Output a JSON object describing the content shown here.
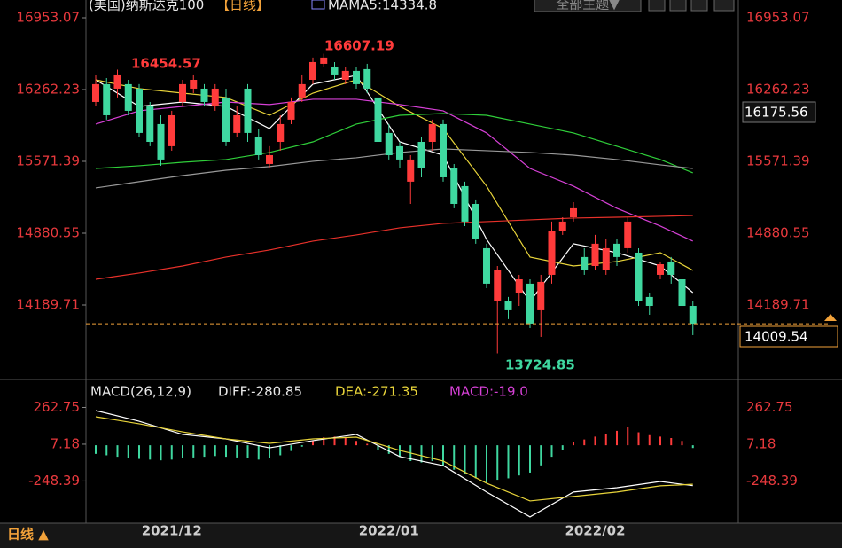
{
  "header": {
    "symbol": "(美国)纳斯达克100",
    "period": "【日线】",
    "indicator": "MAMA5:14334.8",
    "theme_button": "全部主题▼"
  },
  "chart_data": [
    {
      "type": "candlestick",
      "open": [
        16143,
        16314,
        16271,
        16314,
        16271,
        16100,
        15930,
        15717,
        16143,
        16271,
        16271,
        16100,
        16186,
        15845,
        16271,
        15802,
        15546,
        15759,
        15973,
        16186,
        16356,
        16510,
        16484,
        16356,
        16442,
        16459,
        16186,
        15845,
        15717,
        15376,
        15759,
        15759,
        15930,
        15503,
        15333,
        15162,
        14736,
        14224,
        14224,
        14309,
        14395,
        14139,
        14480,
        14906,
        15034,
        14651,
        14565,
        14523,
        14779,
        14736,
        14693,
        14267,
        14480,
        14608,
        14437,
        14181
      ],
      "high": [
        16399,
        16373,
        16454.57,
        16356,
        16314,
        16143,
        16015,
        16058,
        16356,
        16399,
        16314,
        16314,
        16271,
        16100,
        16314,
        15887,
        15717,
        16015,
        16186,
        16399,
        16570,
        16607.19,
        16527,
        16484,
        16484,
        16510,
        16228,
        15930,
        15759,
        15631,
        15802,
        15973,
        15973,
        15546,
        15376,
        15205,
        14779,
        14565,
        14267,
        14480,
        14437,
        14480,
        14992,
        15034,
        15179,
        14736,
        14864,
        14821,
        14821,
        15034,
        14736,
        14309,
        14608,
        14651,
        14480,
        14224
      ],
      "low": [
        16100,
        15973,
        16186,
        16015,
        15802,
        15717,
        15529,
        15674,
        16100,
        16228,
        16100,
        16058,
        15717,
        15802,
        15759,
        15589,
        15503,
        15674,
        15930,
        16143,
        16314,
        16484,
        16356,
        16314,
        16271,
        16228,
        15674,
        15589,
        15503,
        15162,
        15418,
        15674,
        15376,
        15120,
        14949,
        14779,
        14352,
        13724.85,
        14054,
        14181,
        13968,
        13883,
        14395,
        14864,
        14992,
        14480,
        14523,
        14480,
        14565,
        14693,
        14181,
        14096,
        14437,
        14395,
        14139,
        13900
      ],
      "close": [
        16314,
        16015,
        16399,
        16058,
        15845,
        15759,
        15589,
        16015,
        16314,
        16356,
        16143,
        16271,
        15759,
        16015,
        15845,
        15631,
        15631,
        15930,
        16143,
        16314,
        16527,
        16570,
        16399,
        16442,
        16314,
        16271,
        15759,
        15631,
        15589,
        15589,
        15503,
        15930,
        15418,
        15162,
        14992,
        14821,
        14395,
        14523,
        14139,
        14437,
        14011,
        14412,
        14906,
        14992,
        15120,
        14523,
        14779,
        14736,
        14651,
        14992,
        14224,
        14181,
        14582,
        14480,
        14181,
        14009.54
      ],
      "up_color": "#ff3b3b",
      "down_color": "#3fd8a0",
      "ylim": [
        13498.8,
        17123.6
      ],
      "yticks": [
        16953.07,
        16262.23,
        15571.39,
        14880.55,
        14189.71
      ],
      "overlays": [
        {
          "color": "#ffffff",
          "x": [
            0,
            4,
            8,
            12,
            16,
            20,
            24,
            28,
            32,
            36,
            40,
            44,
            48,
            52,
            55
          ],
          "values": [
            16356,
            16100,
            16143,
            16100,
            15887,
            16314,
            16399,
            15759,
            15631,
            14821,
            14224,
            14779,
            14693,
            14565,
            14309
          ]
        },
        {
          "color": "#e8d43a",
          "x": [
            0,
            4,
            8,
            12,
            16,
            20,
            24,
            28,
            32,
            36,
            40,
            44,
            48,
            52,
            55
          ],
          "values": [
            16356,
            16271,
            16228,
            16186,
            16015,
            16228,
            16356,
            16100,
            15887,
            15333,
            14651,
            14565,
            14608,
            14693,
            14523
          ]
        },
        {
          "color": "#d640d6",
          "x": [
            0,
            4,
            8,
            12,
            16,
            20,
            24,
            28,
            32,
            36,
            40,
            44,
            48,
            52,
            55
          ],
          "values": [
            15930,
            16058,
            16100,
            16143,
            16118,
            16169,
            16169,
            16118,
            16058,
            15845,
            15503,
            15333,
            15120,
            14949,
            14804
          ]
        },
        {
          "color": "#2fcf3a",
          "x": [
            0,
            4,
            8,
            12,
            16,
            20,
            24,
            28,
            32,
            36,
            40,
            44,
            48,
            52,
            55
          ],
          "values": [
            15503,
            15529,
            15563,
            15589,
            15657,
            15759,
            15930,
            16015,
            16032,
            16015,
            15930,
            15845,
            15717,
            15589,
            15461
          ]
        },
        {
          "color": "#9a9a9a",
          "x": [
            0,
            4,
            8,
            12,
            16,
            20,
            24,
            28,
            32,
            36,
            40,
            44,
            48,
            52,
            55
          ],
          "values": [
            15316,
            15376,
            15435,
            15486,
            15521,
            15572,
            15606,
            15657,
            15691,
            15674,
            15657,
            15631,
            15589,
            15538,
            15503
          ]
        },
        {
          "color": "#e8312a",
          "x": [
            0,
            4,
            8,
            12,
            16,
            20,
            24,
            28,
            32,
            36,
            40,
            44,
            48,
            52,
            55
          ],
          "values": [
            14437,
            14497,
            14565,
            14651,
            14719,
            14804,
            14864,
            14932,
            14975,
            14992,
            15009,
            15026,
            15034,
            15043,
            15051
          ]
        }
      ],
      "cursor_price": 16175.56,
      "last_price": 14009.54
    },
    {
      "type": "macd",
      "title": "MACD(26,12,9)",
      "diff_label": "DIFF:-280.85",
      "dea_label": "DEA:-271.35",
      "macd_label": "MACD:-19.0",
      "categories": [
        null,
        null,
        null,
        null,
        null,
        null,
        null,
        "2021/12",
        null,
        null,
        null,
        null,
        null,
        null,
        null,
        null,
        null,
        null,
        null,
        null,
        null,
        null,
        null,
        null,
        null,
        null,
        null,
        "2022/01",
        null,
        null,
        null,
        null,
        null,
        null,
        null,
        null,
        null,
        null,
        null,
        null,
        null,
        null,
        null,
        null,
        null,
        null,
        "2022/02",
        null,
        null,
        null,
        null,
        null,
        null,
        null,
        null,
        null
      ],
      "values": [
        -60,
        -70,
        -80,
        -90,
        -95,
        -100,
        -105,
        -100,
        -90,
        -85,
        -80,
        -75,
        -80,
        -85,
        -90,
        -100,
        -90,
        -70,
        -40,
        -10,
        30,
        55,
        60,
        50,
        30,
        10,
        -30,
        -60,
        -80,
        -110,
        -120,
        -110,
        -140,
        -170,
        -200,
        -230,
        -260,
        -240,
        -230,
        -210,
        -190,
        -140,
        -80,
        -30,
        20,
        40,
        60,
        80,
        100,
        130,
        90,
        70,
        60,
        50,
        30,
        -19.0
      ],
      "up_color": "#ff3b3b",
      "down_color": "#3fd8a0",
      "series": [
        {
          "color": "#ffffff",
          "x": [
            0,
            4,
            8,
            12,
            16,
            20,
            24,
            28,
            32,
            36,
            40,
            44,
            48,
            52,
            55
          ],
          "values": [
            241,
            167,
            75,
            44,
            -18,
            32,
            75,
            -79,
            -141,
            -325,
            -498,
            -325,
            -295,
            -252,
            -280.85
          ]
        },
        {
          "color": "#e8d43a",
          "x": [
            0,
            4,
            8,
            12,
            16,
            20,
            24,
            28,
            32,
            36,
            40,
            44,
            48,
            52,
            55
          ],
          "values": [
            198,
            149,
            93,
            44,
            13,
            44,
            56,
            -36,
            -110,
            -264,
            -387,
            -356,
            -325,
            -282,
            -271.35
          ]
        }
      ],
      "ylim": [
        -541.5,
        352
      ],
      "yticks": [
        262.75,
        7.18,
        -248.39
      ]
    }
  ],
  "footer": {
    "period": "日线 ▲"
  }
}
